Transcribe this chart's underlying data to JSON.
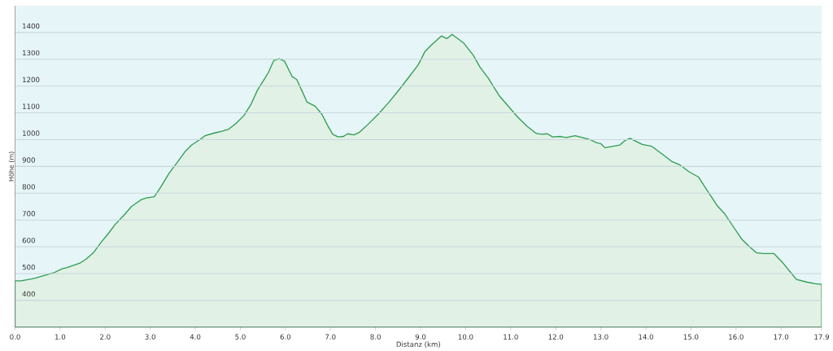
{
  "chart_data": {
    "type": "area",
    "xlabel": "Distanz (km)",
    "ylabel": "Höhe (m)",
    "xlim": [
      0,
      17.9
    ],
    "ylim": [
      300,
      1500
    ],
    "xticks": [
      {
        "value": 0,
        "label": "0.0"
      },
      {
        "value": 1,
        "label": "1.0"
      },
      {
        "value": 2,
        "label": "2.0"
      },
      {
        "value": 3,
        "label": "3.0"
      },
      {
        "value": 4,
        "label": "4.0"
      },
      {
        "value": 5,
        "label": "5.0"
      },
      {
        "value": 6,
        "label": "6.0"
      },
      {
        "value": 7,
        "label": "7.0"
      },
      {
        "value": 8,
        "label": "8.0"
      },
      {
        "value": 9,
        "label": "9.0"
      },
      {
        "value": 10,
        "label": "10.0"
      },
      {
        "value": 11,
        "label": "11.0"
      },
      {
        "value": 12,
        "label": "12.0"
      },
      {
        "value": 13,
        "label": "13.0"
      },
      {
        "value": 14,
        "label": "14.0"
      },
      {
        "value": 15,
        "label": "15.0"
      },
      {
        "value": 16,
        "label": "16.0"
      },
      {
        "value": 17,
        "label": "17.0"
      },
      17.9
    ],
    "yticks": [
      400,
      500,
      600,
      700,
      800,
      900,
      1000,
      1100,
      1200,
      1300,
      1400
    ],
    "grid": "y",
    "x": [
      0,
      0.14,
      0.44,
      0.86,
      1.04,
      1.15,
      1.45,
      1.57,
      1.75,
      1.9,
      2.05,
      2.23,
      2.4,
      2.58,
      2.79,
      2.91,
      3.09,
      3.24,
      3.42,
      3.6,
      3.77,
      3.92,
      4.1,
      4.22,
      4.43,
      4.61,
      4.73,
      4.9,
      5.08,
      5.23,
      5.38,
      5.53,
      5.62,
      5.74,
      5.86,
      5.98,
      6.15,
      6.25,
      6.36,
      6.48,
      6.66,
      6.81,
      6.93,
      7.05,
      7.17,
      7.29,
      7.38,
      7.52,
      7.64,
      7.82,
      8.06,
      8.3,
      8.54,
      8.77,
      8.95,
      9.1,
      9.25,
      9.46,
      9.58,
      9.7,
      9.96,
      10.17,
      10.32,
      10.5,
      10.74,
      10.92,
      11.15,
      11.36,
      11.57,
      11.69,
      11.81,
      11.93,
      12.11,
      12.23,
      12.43,
      12.76,
      12.91,
      13.0,
      13.09,
      13.42,
      13.54,
      13.65,
      13.92,
      14.13,
      14.37,
      14.58,
      14.76,
      14.96,
      15.17,
      15.38,
      15.59,
      15.74,
      15.92,
      16.12,
      16.27,
      16.45,
      16.63,
      16.84,
      17.04,
      17.22,
      17.34,
      17.58,
      17.76,
      17.9
    ],
    "series": [
      {
        "color": "#2e9e50",
        "values": [
          473,
          473,
          483,
          503,
          518,
          522,
          540,
          553,
          580,
          615,
          645,
          685,
          715,
          750,
          775,
          782,
          787,
          825,
          875,
          915,
          955,
          980,
          1000,
          1015,
          1025,
          1032,
          1038,
          1060,
          1090,
          1130,
          1185,
          1225,
          1250,
          1295,
          1302,
          1293,
          1235,
          1225,
          1185,
          1140,
          1125,
          1095,
          1055,
          1020,
          1010,
          1012,
          1022,
          1018,
          1027,
          1055,
          1095,
          1140,
          1190,
          1240,
          1280,
          1330,
          1355,
          1387,
          1377,
          1393,
          1360,
          1315,
          1270,
          1230,
          1165,
          1130,
          1085,
          1050,
          1023,
          1020,
          1022,
          1010,
          1012,
          1008,
          1015,
          1000,
          988,
          985,
          970,
          980,
          997,
          1005,
          982,
          975,
          945,
          918,
          905,
          880,
          860,
          805,
          752,
          725,
          680,
          630,
          605,
          578,
          575,
          575,
          540,
          503,
          478,
          468,
          462,
          460
        ]
      }
    ]
  }
}
